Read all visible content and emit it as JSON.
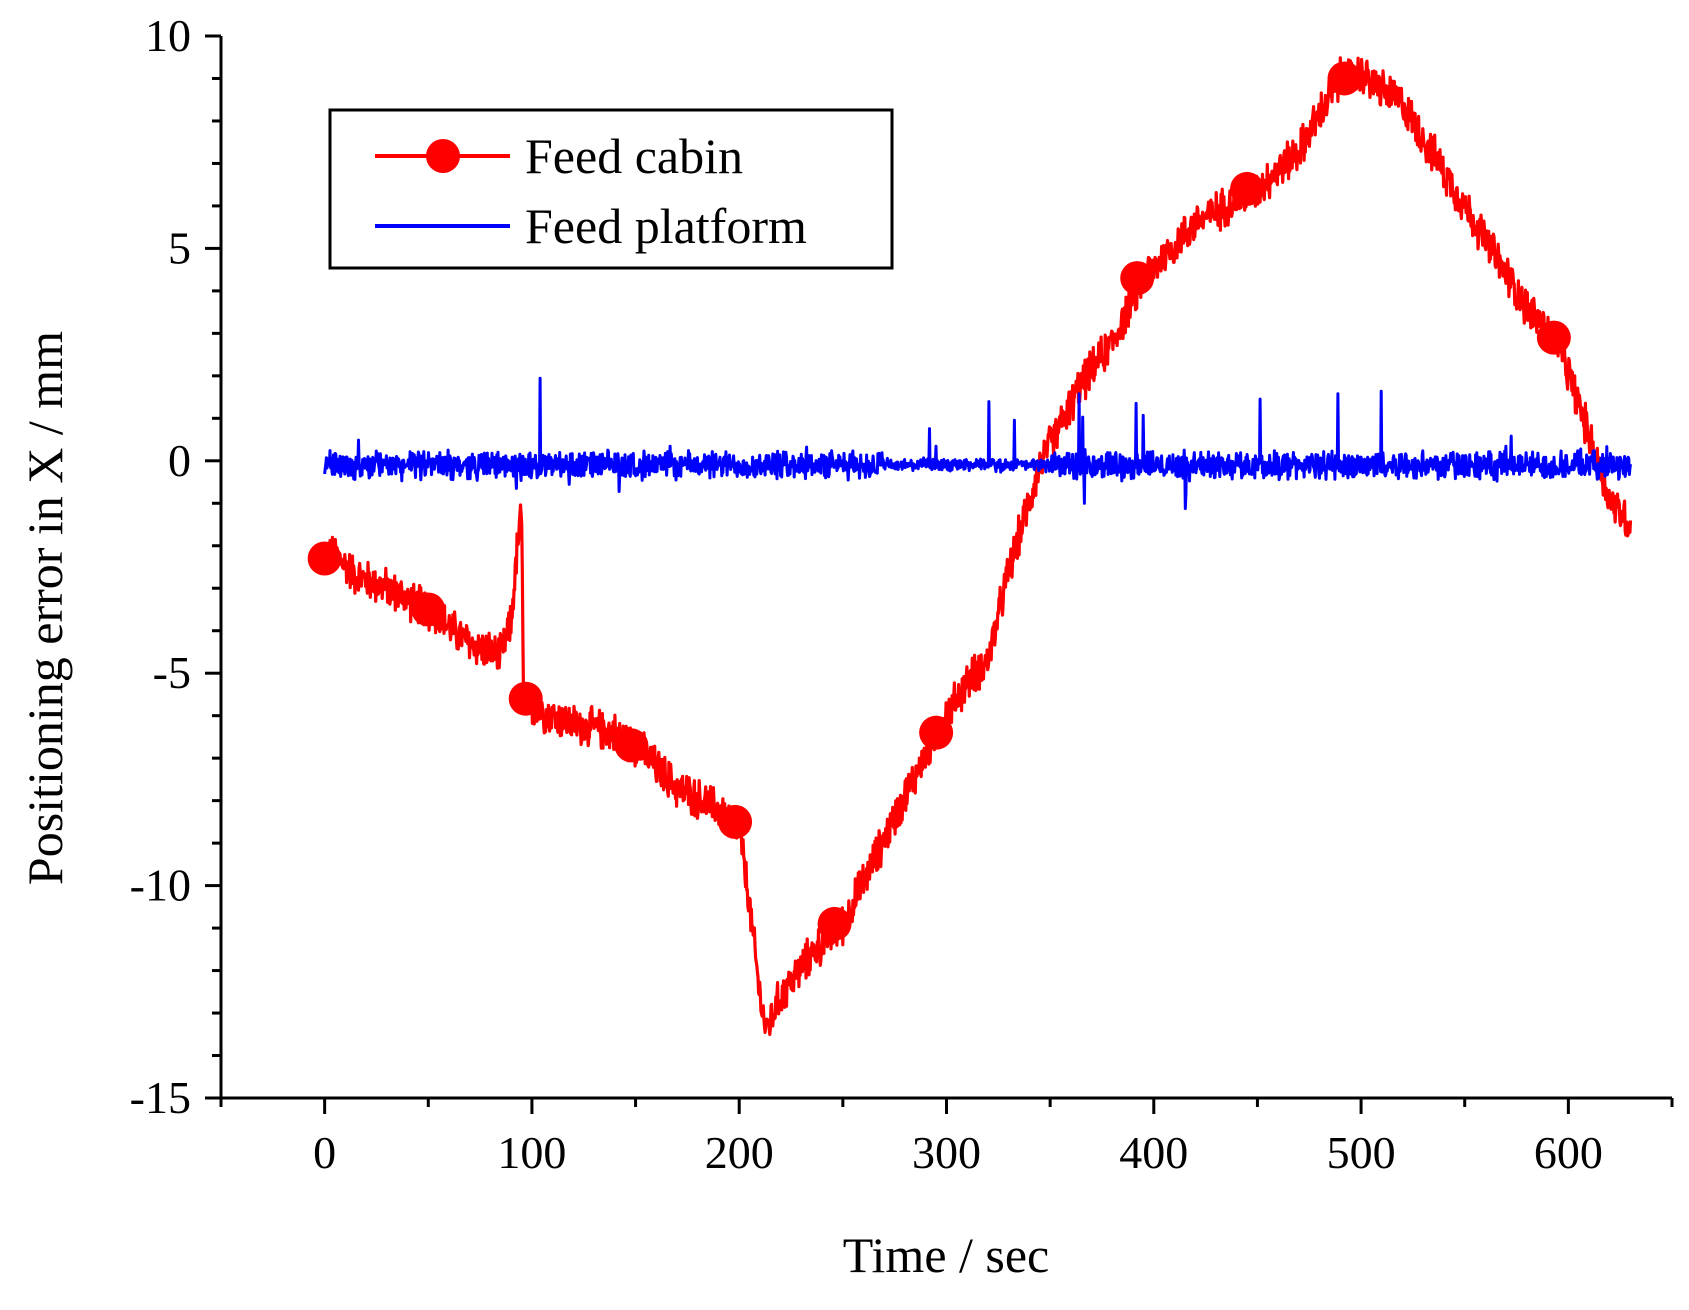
{
  "chart_data": {
    "type": "line",
    "title": "",
    "xlabel": "Time / sec",
    "ylabel": "Positioning error in X / mm",
    "xlim": [
      -50,
      650
    ],
    "ylim": [
      -15,
      10
    ],
    "x_ticks": [
      0,
      100,
      200,
      300,
      400,
      500,
      600
    ],
    "y_ticks": [
      10,
      5,
      0,
      -5,
      -10,
      -15
    ],
    "grid": false,
    "legend_position": "top-left",
    "series": [
      {
        "name": "Feed cabin",
        "color": "#ff0000",
        "marker": "circle",
        "noise": 0.55,
        "x": [
          0,
          5,
          15,
          30,
          50,
          70,
          85,
          90,
          93,
          95,
          96,
          100,
          120,
          140,
          150,
          170,
          190,
          200,
          205,
          210,
          213,
          220,
          235,
          250,
          270,
          295,
          310,
          320,
          330,
          345,
          365,
          380,
          395,
          420,
          450,
          470,
          490,
          500,
          520,
          540,
          560,
          580,
          595,
          610,
          620,
          630
        ],
        "values": [
          -2.3,
          -2.2,
          -2.7,
          -3.0,
          -3.5,
          -4.3,
          -4.6,
          -3.8,
          -2.0,
          -1.2,
          -5.6,
          -5.8,
          -6.2,
          -6.4,
          -6.7,
          -7.7,
          -8.2,
          -8.6,
          -10.5,
          -12.6,
          -13.4,
          -12.6,
          -11.6,
          -10.9,
          -8.9,
          -6.4,
          -5.2,
          -4.7,
          -2.6,
          -0.1,
          1.8,
          2.8,
          4.3,
          5.6,
          6.4,
          7.3,
          9.0,
          9.1,
          8.4,
          6.8,
          5.2,
          3.6,
          2.8,
          0.6,
          -0.9,
          -1.5
        ],
        "marker_points": [
          {
            "x": 0,
            "y": -2.3
          },
          {
            "x": 50,
            "y": -3.5
          },
          {
            "x": 97,
            "y": -5.6
          },
          {
            "x": 148,
            "y": -6.7
          },
          {
            "x": 198,
            "y": -8.5
          },
          {
            "x": 246,
            "y": -10.9
          },
          {
            "x": 295,
            "y": -6.4
          },
          {
            "x": 392,
            "y": 4.3
          },
          {
            "x": 445,
            "y": 6.4
          },
          {
            "x": 492,
            "y": 9.0
          },
          {
            "x": 593,
            "y": 2.9
          }
        ]
      },
      {
        "name": "Feed platform",
        "color": "#0000ff",
        "marker": "none",
        "noise": 0.38,
        "x": [
          0,
          630
        ],
        "values": [
          -0.1,
          -0.1
        ]
      }
    ]
  }
}
